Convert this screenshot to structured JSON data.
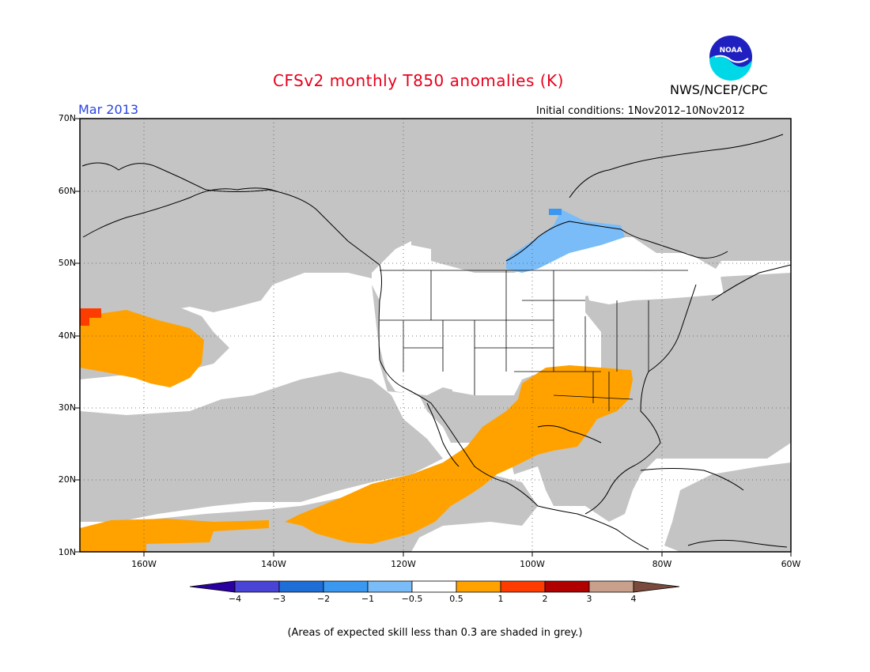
{
  "header": {
    "title": "CFSv2 monthly T850 anomalies (K)",
    "valid_month": "Mar 2013",
    "initial_conditions": "Initial conditions: 1Nov2012–10Nov2012",
    "agency": "NWS/NCEP/CPC",
    "logo_text": "NOAA"
  },
  "axes": {
    "lat_labels": [
      "70N",
      "60N",
      "50N",
      "40N",
      "30N",
      "20N",
      "10N"
    ],
    "lon_labels": [
      "160W",
      "140W",
      "120W",
      "100W",
      "80W",
      "60W"
    ]
  },
  "colorbar": {
    "labels": [
      "−4",
      "−3",
      "−2",
      "−1",
      "−0.5",
      "0.5",
      "1",
      "2",
      "3",
      "4"
    ],
    "colors": [
      "#2a00a0",
      "#4a44d6",
      "#1e6ed8",
      "#3a98f0",
      "#7abcf8",
      "#ffffff",
      "#ffa200",
      "#ff3c00",
      "#b00000",
      "#c8a08c",
      "#7a4a3c"
    ]
  },
  "colors": {
    "grey": "#c4c4c4",
    "orange": "#ffa200",
    "red": "#ff3c00",
    "blue1": "#7abcf8",
    "blue2": "#3a98f0"
  },
  "footer": "(Areas of expected skill less than 0.3 are shaded in grey.)"
}
